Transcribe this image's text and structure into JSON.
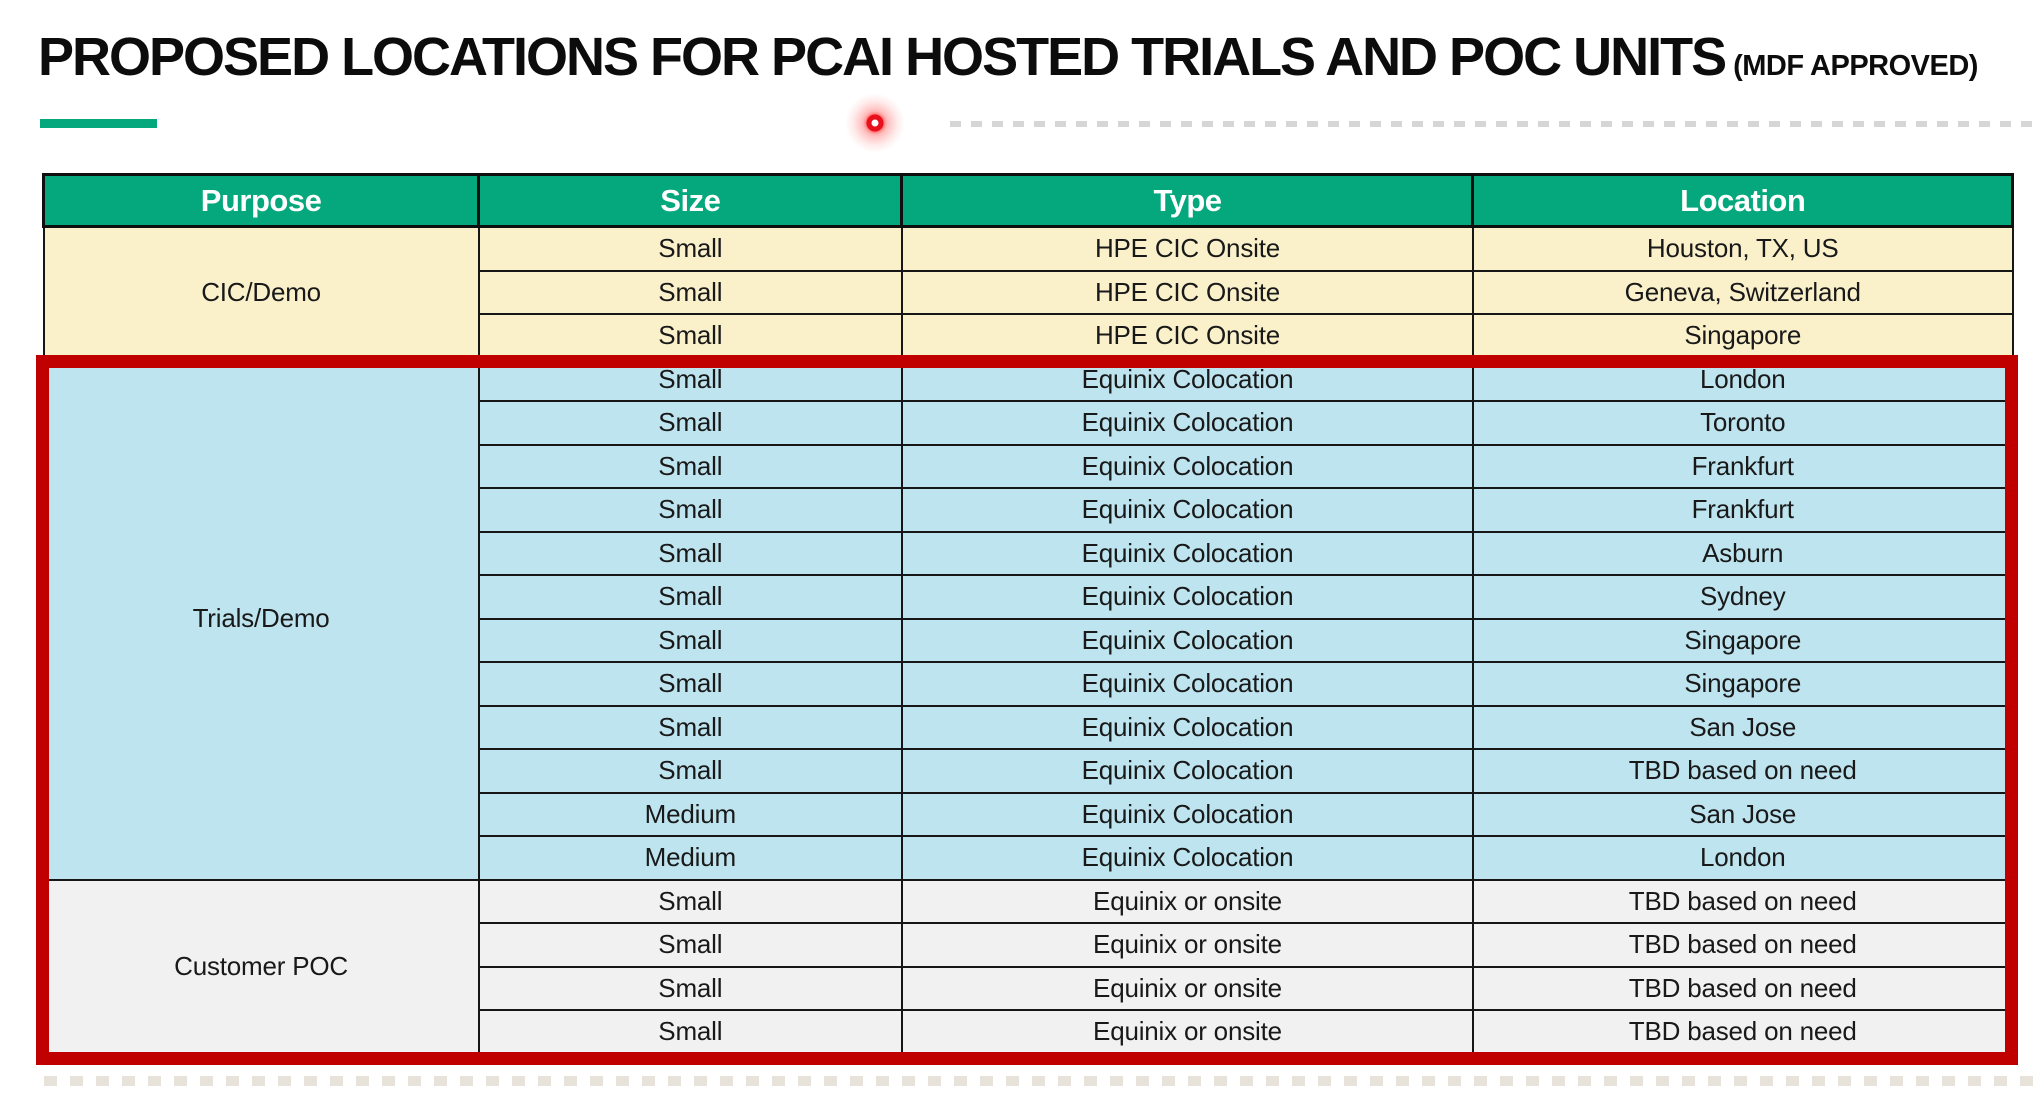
{
  "title": {
    "main": "PROPOSED LOCATIONS FOR PCAI HOSTED TRIALS AND POC UNITS",
    "badge": "(MDF APPROVED)"
  },
  "colors": {
    "teal": "#05A77C",
    "cream": "#FAF1CB",
    "blue": "#BEE4EF",
    "gray": "#F1F1F1",
    "red": "#C00000",
    "laser": "#E8101C"
  },
  "table": {
    "headers": [
      "Purpose",
      "Size",
      "Type",
      "Location"
    ],
    "groups": [
      {
        "purpose": "CIC/Demo",
        "theme": "cream",
        "rows": [
          [
            "Small",
            "HPE CIC Onsite",
            "Houston, TX, US"
          ],
          [
            "Small",
            "HPE CIC Onsite",
            "Geneva, Switzerland"
          ],
          [
            "Small",
            "HPE CIC Onsite",
            "Singapore"
          ]
        ]
      },
      {
        "purpose": "Trials/Demo",
        "theme": "blue",
        "rows": [
          [
            "Small",
            "Equinix Colocation",
            "London"
          ],
          [
            "Small",
            "Equinix Colocation",
            "Toronto"
          ],
          [
            "Small",
            "Equinix Colocation",
            "Frankfurt"
          ],
          [
            "Small",
            "Equinix Colocation",
            "Frankfurt"
          ],
          [
            "Small",
            "Equinix Colocation",
            "Asburn"
          ],
          [
            "Small",
            "Equinix Colocation",
            "Sydney"
          ],
          [
            "Small",
            "Equinix Colocation",
            "Singapore"
          ],
          [
            "Small",
            "Equinix Colocation",
            "Singapore"
          ],
          [
            "Small",
            "Equinix Colocation",
            "San Jose"
          ],
          [
            "Small",
            "Equinix Colocation",
            "TBD based on need"
          ],
          [
            "Medium",
            "Equinix Colocation",
            "San Jose"
          ],
          [
            "Medium",
            "Equinix Colocation",
            "London"
          ]
        ]
      },
      {
        "purpose": "Customer POC",
        "theme": "gray",
        "rows": [
          [
            "Small",
            "Equinix or onsite",
            "TBD based on need"
          ],
          [
            "Small",
            "Equinix or onsite",
            "TBD based on need"
          ],
          [
            "Small",
            "Equinix or onsite",
            "TBD based on need"
          ],
          [
            "Small",
            "Equinix or onsite",
            "TBD based on need"
          ]
        ]
      }
    ]
  },
  "annotations": {
    "highlight_box": "red rectangle around Trials/Demo and Customer POC sections",
    "laser_pointer": "red presenter dot near title"
  }
}
